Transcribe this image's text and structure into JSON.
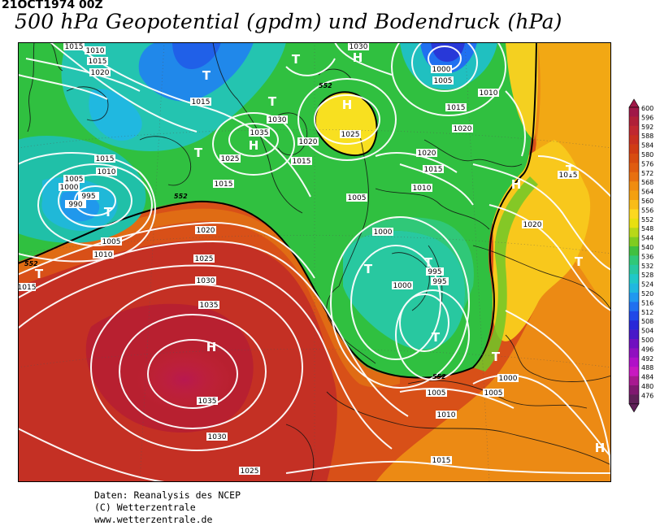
{
  "header": {
    "date_label": "21OCT1974 00Z",
    "title": "500 hPa Geopotential (gpdm) und Bodendruck (hPa)"
  },
  "legend": {
    "values": [
      "600",
      "596",
      "592",
      "588",
      "584",
      "580",
      "576",
      "572",
      "568",
      "564",
      "560",
      "556",
      "552",
      "548",
      "544",
      "540",
      "536",
      "532",
      "528",
      "524",
      "520",
      "516",
      "512",
      "508",
      "504",
      "500",
      "496",
      "492",
      "488",
      "484",
      "480",
      "476"
    ],
    "colors": [
      "#a01848",
      "#b02038",
      "#c02830",
      "#c83020",
      "#d03c14",
      "#d84c10",
      "#e05c10",
      "#e87010",
      "#f08c10",
      "#f4a010",
      "#f8bc18",
      "#fcd820",
      "#e8e010",
      "#b8d818",
      "#80cc20",
      "#40c040",
      "#30c878",
      "#28c8a0",
      "#20c8c8",
      "#20b8e0",
      "#2098f0",
      "#2070f0",
      "#2048e8",
      "#2828d8",
      "#4818c8",
      "#7010c0",
      "#9010c0",
      "#b010c8",
      "#c818c0",
      "#a81890",
      "#801870",
      "#602058"
    ]
  },
  "map": {
    "isobar_labels": [
      "1015",
      "1010",
      "1015",
      "1020",
      "1030",
      "1000",
      "1005",
      "1010",
      "1015",
      "1020",
      "1015",
      "1030",
      "1035",
      "1020",
      "1025",
      "1015",
      "1025",
      "1015",
      "1005",
      "1010",
      "995",
      "990",
      "1000",
      "1005",
      "1010",
      "1015",
      "1020",
      "1025",
      "1030",
      "1035",
      "1035",
      "1030",
      "1025",
      "1015",
      "1020",
      "1015",
      "1010",
      "1005",
      "1000",
      "995",
      "995",
      "1000",
      "1005",
      "1005",
      "1010",
      "1015",
      "1020",
      "1015",
      "1020",
      "1000"
    ],
    "pressure_centers": [
      "T",
      "H",
      "T",
      "H",
      "T",
      "T",
      "H",
      "T",
      "T",
      "T",
      "T",
      "H",
      "T",
      "T",
      "H",
      "T",
      "H"
    ],
    "contour_552_labels": [
      "552",
      "552",
      "552",
      "552"
    ]
  },
  "credits": {
    "line1": "Daten: Reanalysis des NCEP",
    "line2": "(C) Wetterzentrale",
    "line3": "www.wetterzentrale.de"
  }
}
